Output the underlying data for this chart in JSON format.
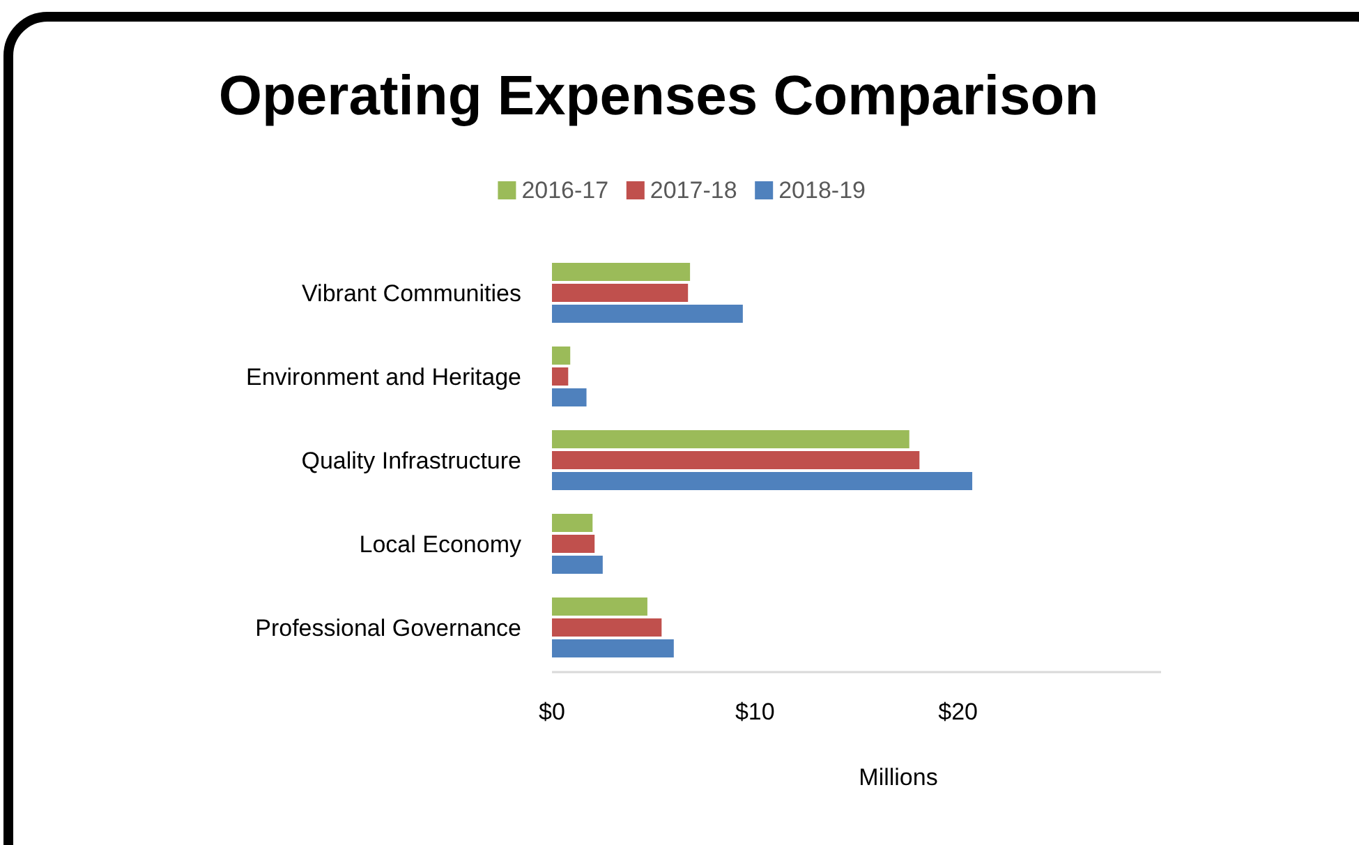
{
  "chart_data": {
    "type": "bar",
    "orientation": "horizontal",
    "title": "Operating Expenses Comparison",
    "xlabel": "Millions",
    "categories": [
      "Vibrant Communities",
      "Environment and Heritage",
      "Quality Infrastructure",
      "Local Economy",
      "Professional Governance"
    ],
    "series": [
      {
        "name": "2016-17",
        "color": "#9bbb59",
        "values": [
          6.8,
          0.9,
          17.6,
          2.0,
          4.7
        ]
      },
      {
        "name": "2017-18",
        "color": "#c0504d",
        "values": [
          6.7,
          0.8,
          18.1,
          2.1,
          5.4
        ]
      },
      {
        "name": "2018-19",
        "color": "#4f81bd",
        "values": [
          9.4,
          1.7,
          20.7,
          2.5,
          6.0
        ]
      }
    ],
    "xlim": [
      0,
      30
    ],
    "xticks": [
      {
        "value": 0,
        "label": "$0"
      },
      {
        "value": 10,
        "label": "$10"
      },
      {
        "value": 20,
        "label": "$20"
      }
    ],
    "grid": false,
    "legend": "top"
  }
}
